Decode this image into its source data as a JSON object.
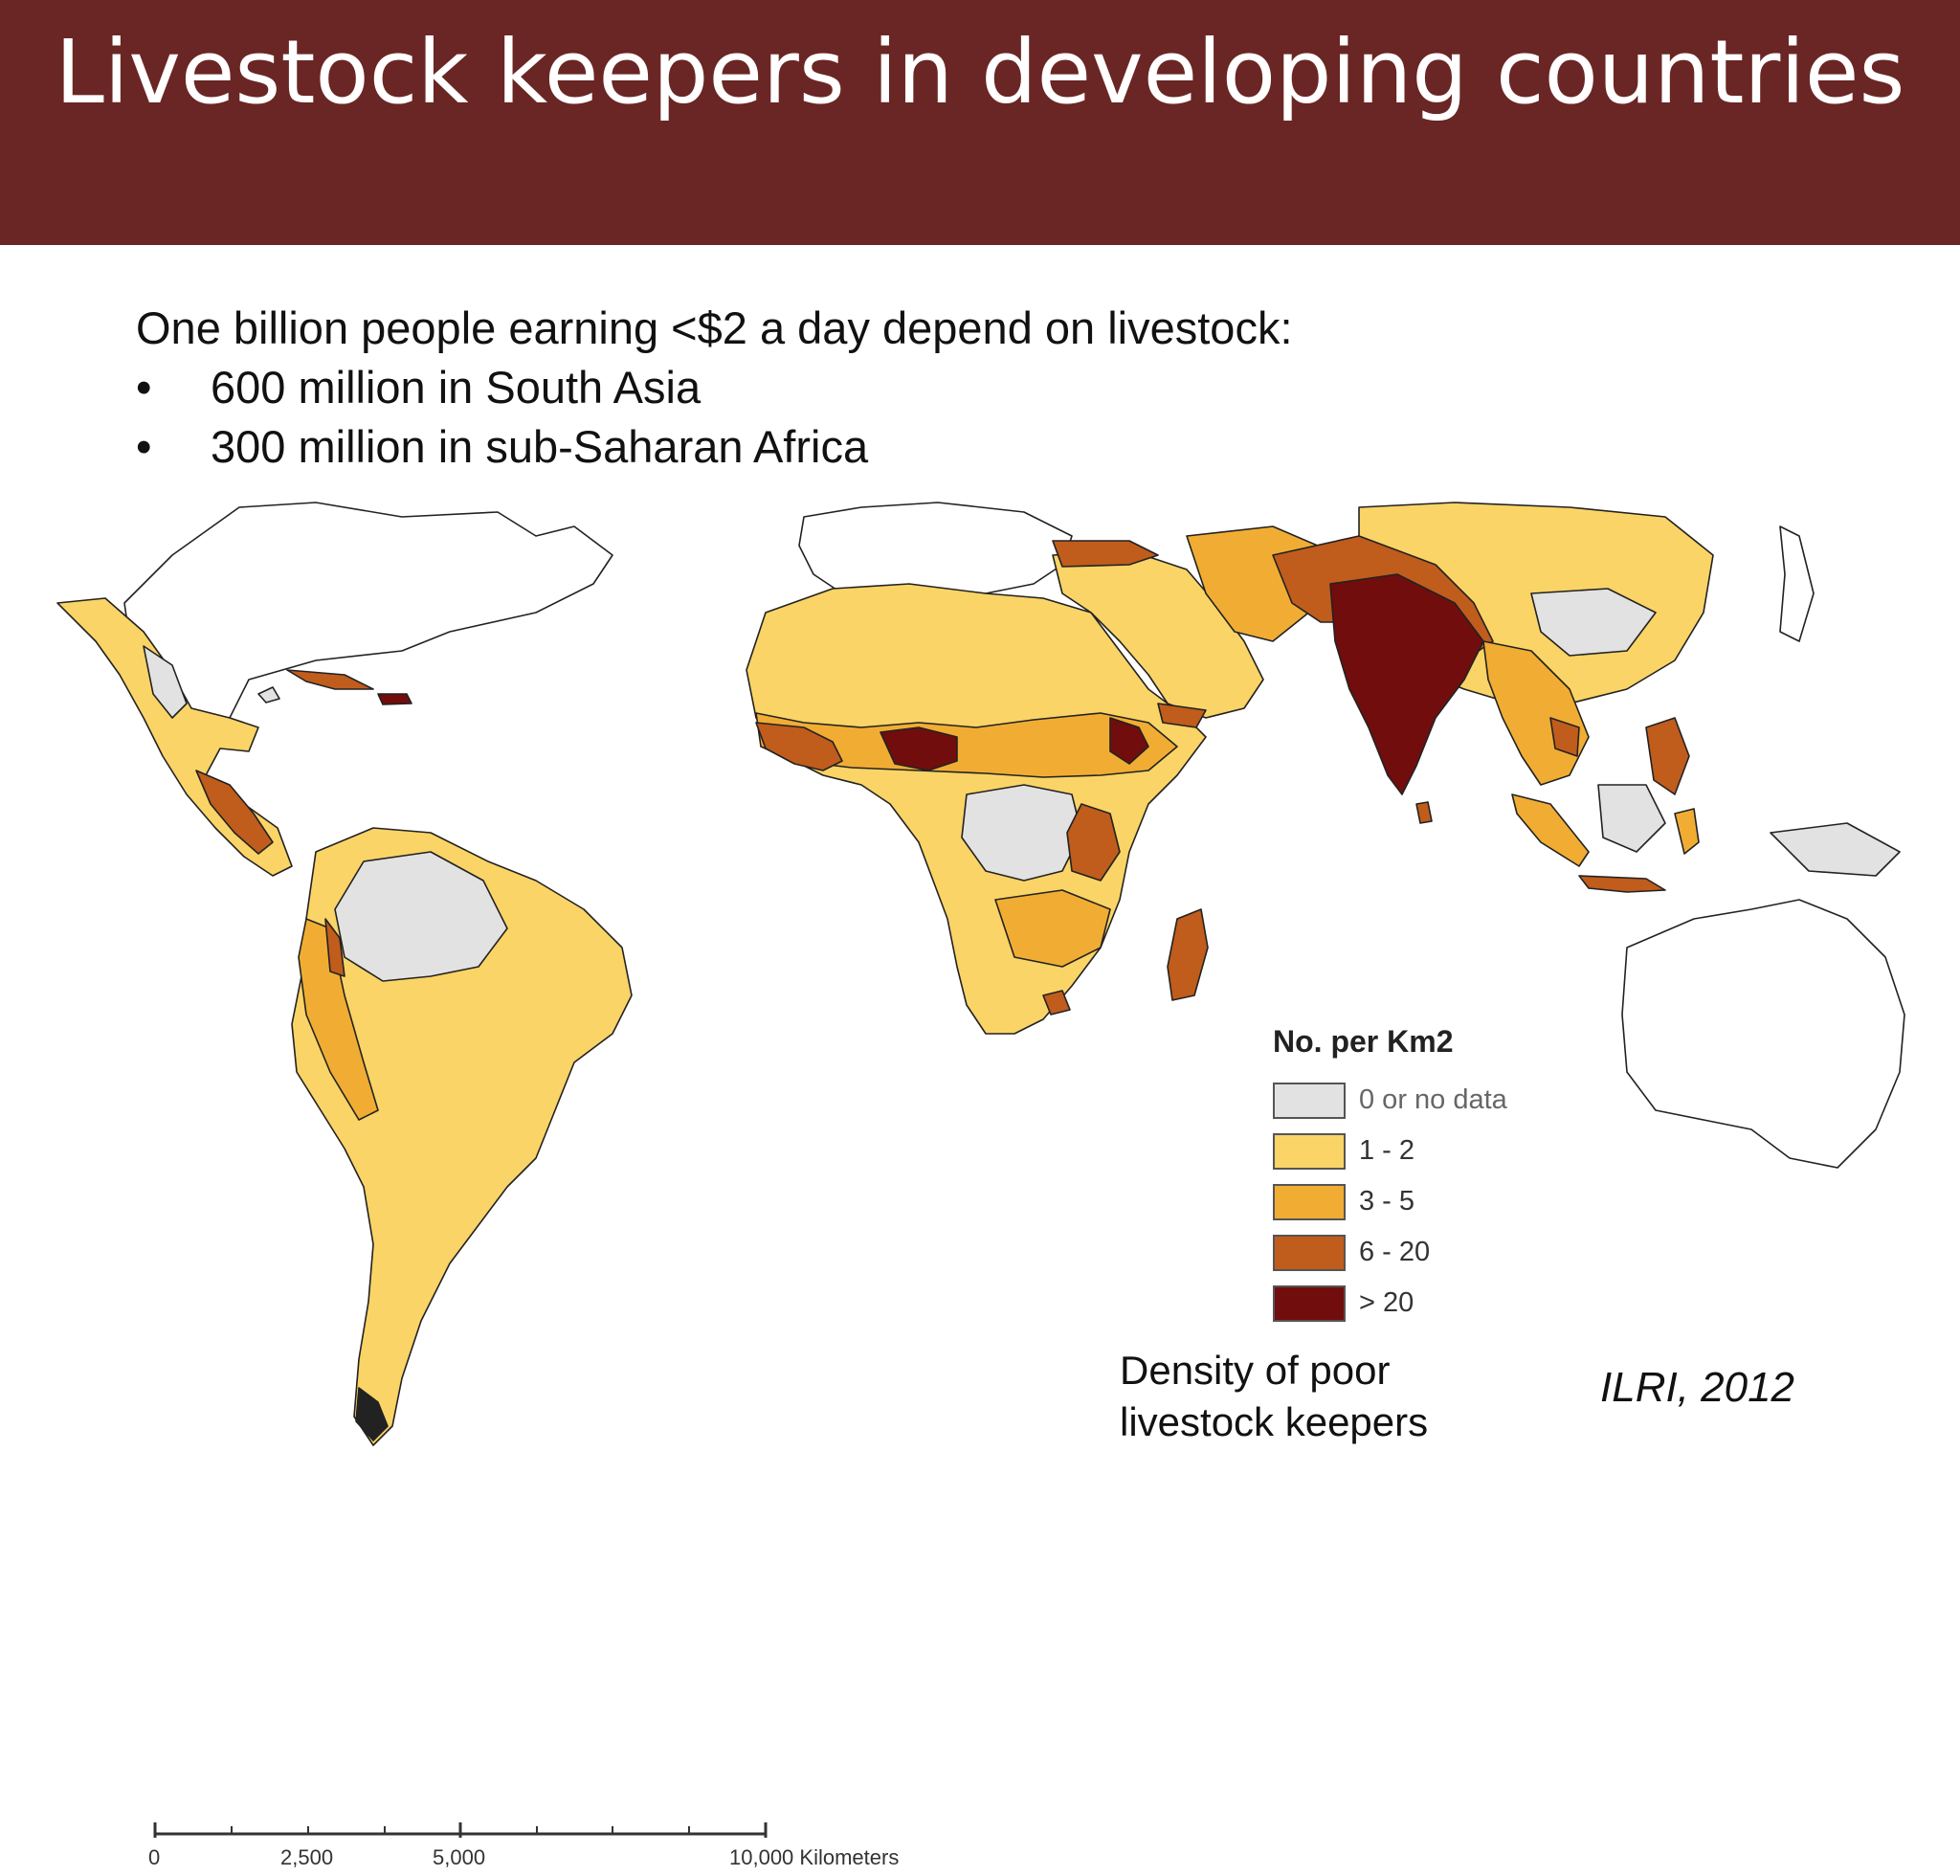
{
  "slide": {
    "title": "Livestock keepers in developing countries",
    "intro": "One billion people earning <$2 a day depend on livestock:",
    "bullets": [
      {
        "marker": "•",
        "text": "600 million in South Asia"
      },
      {
        "marker": "•",
        "text": "300 million in sub-Saharan Africa"
      }
    ],
    "caption": [
      "Density of poor",
      "livestock keepers"
    ],
    "source": "ILRI, 2012"
  },
  "map": {
    "legend": {
      "title": "No. per Km2",
      "entries": [
        {
          "label": "0 or no data",
          "color": "#e2e2e2"
        },
        {
          "label": "1 - 2",
          "color": "#fad466"
        },
        {
          "label": "3 - 5",
          "color": "#f1ad33"
        },
        {
          "label": "6 - 20",
          "color": "#c05c1c"
        },
        {
          "label": "> 20",
          "color": "#720d0d"
        }
      ]
    },
    "scale": {
      "labels": [
        "0",
        "2,500",
        "5,000",
        "10,000 Kilometers"
      ]
    },
    "colors": {
      "header": "#6a2624",
      "no_data": "#e2e2e2",
      "low": "#fad466",
      "medium": "#f1ad33",
      "high": "#c05c1c",
      "very_high": "#720d0d",
      "outline": "#222222"
    }
  }
}
